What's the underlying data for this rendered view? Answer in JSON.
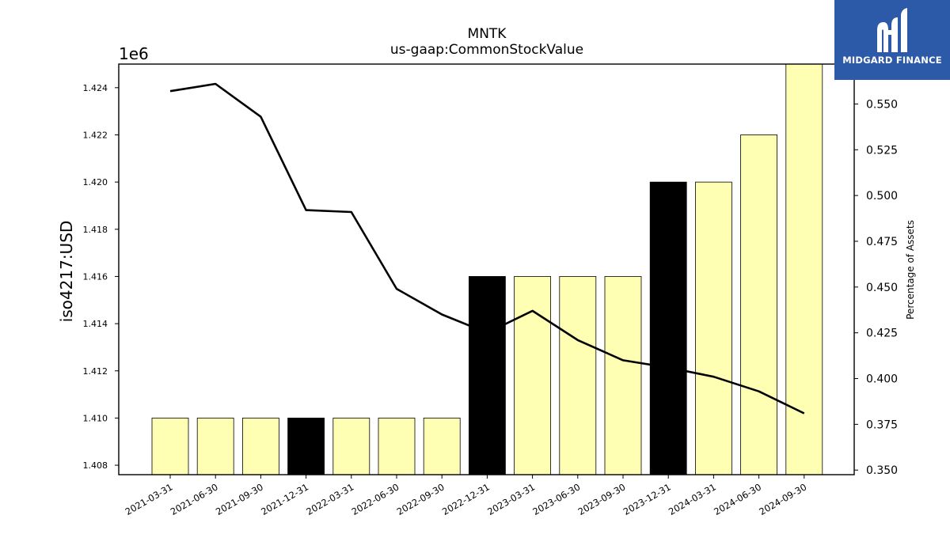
{
  "chart_data": {
    "type": "bar",
    "title": "MNTK",
    "subtitle": "us-gaap:CommonStockValue",
    "ylabel": "iso4217:USD",
    "y2label": "Percentage of Assets",
    "offset_text": "1e6",
    "categories": [
      "2021-03-31",
      "2021-06-30",
      "2021-09-30",
      "2021-12-31",
      "2022-03-31",
      "2022-06-30",
      "2022-09-30",
      "2022-12-31",
      "2023-03-31",
      "2023-06-30",
      "2023-09-30",
      "2023-12-31",
      "2024-03-31",
      "2024-06-30",
      "2024-09-30"
    ],
    "series": [
      {
        "kind": "bar",
        "values": [
          1410000,
          1410000,
          1410000,
          1410000,
          1410000,
          1410000,
          1410000,
          1416000,
          1416000,
          1416000,
          1416000,
          1420000,
          1420000,
          1422000,
          1425000
        ],
        "colors": [
          "#ffffb3",
          "#ffffb3",
          "#ffffb3",
          "#000000",
          "#ffffb3",
          "#ffffb3",
          "#ffffb3",
          "#000000",
          "#ffffb3",
          "#ffffb3",
          "#ffffb3",
          "#000000",
          "#ffffb3",
          "#ffffb3",
          "#ffffb3"
        ]
      },
      {
        "kind": "line",
        "axis": "right",
        "color": "#000000",
        "values": [
          0.557,
          0.561,
          0.543,
          0.492,
          0.491,
          0.449,
          0.435,
          0.425,
          0.437,
          0.421,
          0.41,
          0.406,
          0.401,
          0.393,
          0.381
        ]
      }
    ],
    "ylim": [
      1407600,
      1425000
    ],
    "y2lim": [
      0.3475,
      0.5718
    ],
    "yticks": [
      1.408,
      1.41,
      1.412,
      1.414,
      1.416,
      1.418,
      1.42,
      1.422,
      1.424
    ],
    "ytick_labels": [
      "1.408",
      "1.410",
      "1.412",
      "1.414",
      "1.416",
      "1.418",
      "1.420",
      "1.422",
      "1.424"
    ],
    "y2ticks": [
      0.35,
      0.375,
      0.4,
      0.425,
      0.45,
      0.475,
      0.5,
      0.525,
      0.55
    ],
    "y2tick_labels": [
      "0.350",
      "0.375",
      "0.400",
      "0.425",
      "0.450",
      "0.475",
      "0.500",
      "0.525",
      "0.550"
    ],
    "grid": false
  },
  "logo": {
    "text": "MIDGARD FINANCE",
    "color": "#2c5aa8"
  }
}
